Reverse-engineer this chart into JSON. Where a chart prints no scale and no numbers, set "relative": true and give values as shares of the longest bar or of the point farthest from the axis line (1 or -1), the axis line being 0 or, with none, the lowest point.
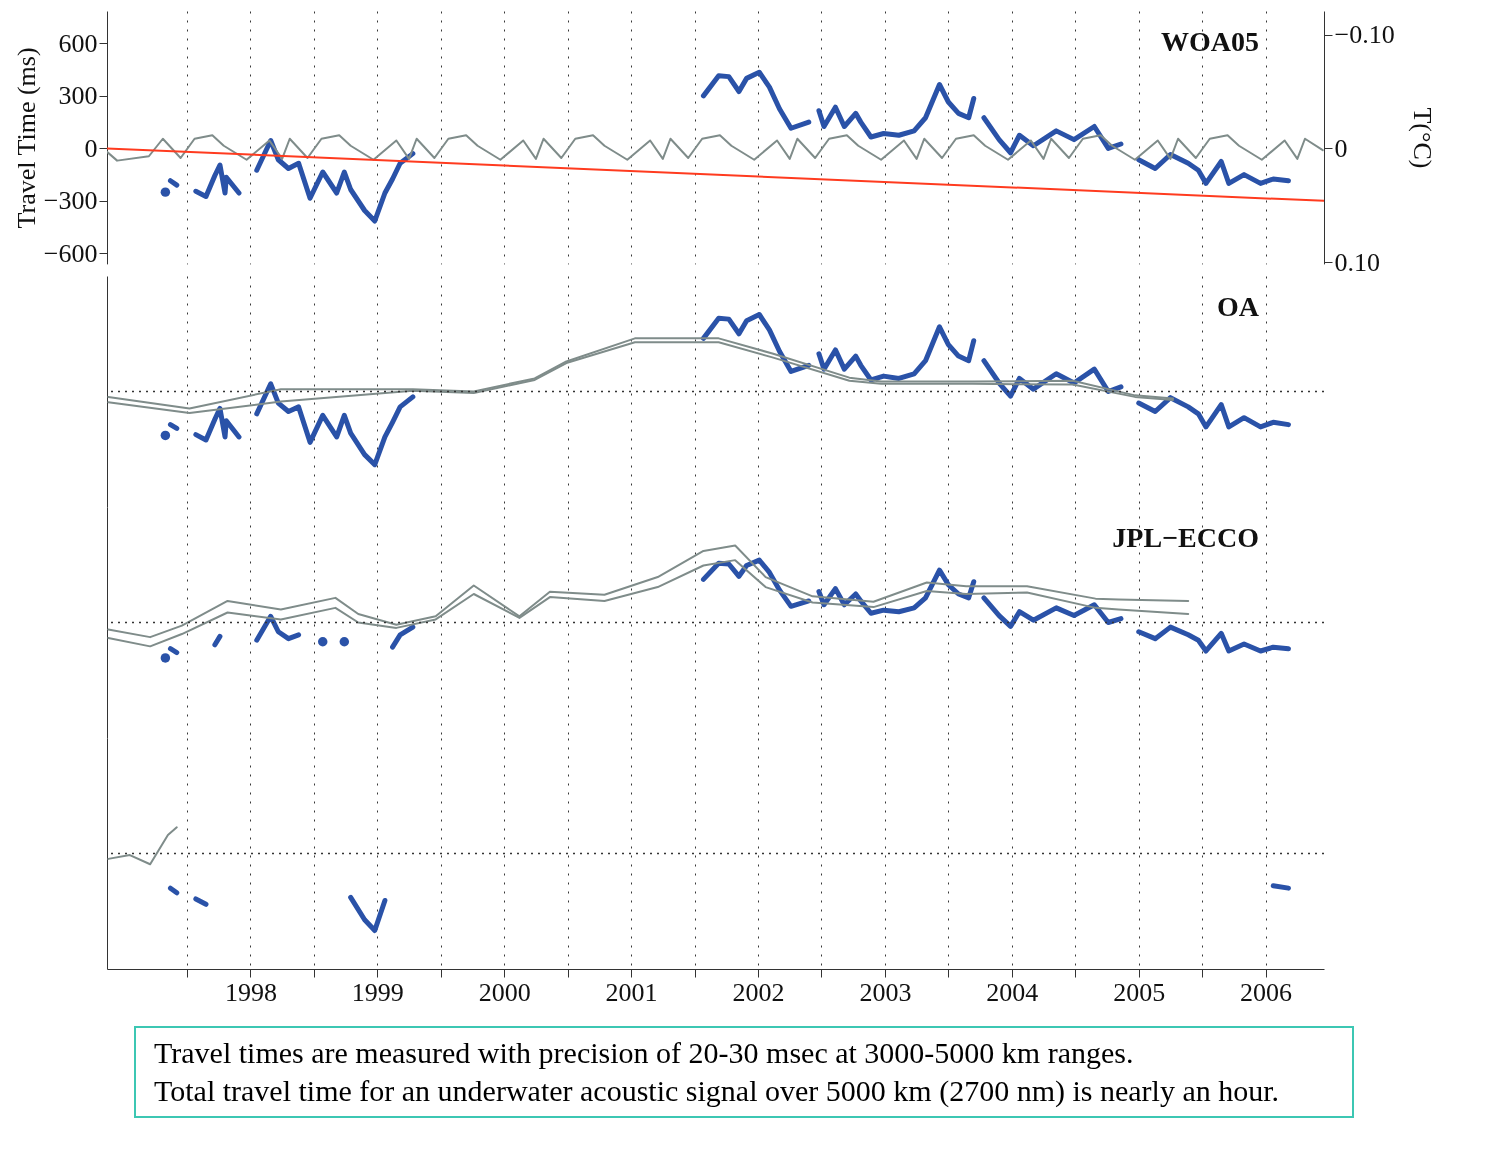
{
  "chart_data": [
    {
      "type": "line",
      "title": "WOA05",
      "ylabel": "Travel Time (ms)",
      "y2label": "T(°C)",
      "xlim": [
        1996.87,
        2006.46
      ],
      "ylim": [
        -660,
        785
      ],
      "y2lim": [
        0.1015,
        -0.1208
      ],
      "xticks": [
        {
          "value": 1997.5,
          "label": null
        },
        1998,
        {
          "value": 1998.5,
          "label": null
        },
        1999,
        {
          "value": 1999.5,
          "label": null
        },
        2000,
        {
          "value": 2000.5,
          "label": null
        },
        2001,
        {
          "value": 2001.5,
          "label": null
        },
        2002,
        {
          "value": 2002.5,
          "label": null
        },
        2003,
        {
          "value": 2003.5,
          "label": null
        },
        2004,
        {
          "value": 2004.5,
          "label": null
        },
        2005,
        {
          "value": 2005.5,
          "label": null
        },
        2006
      ],
      "yticks": [
        {
          "value": -600,
          "label": "−600"
        },
        {
          "value": -300,
          "label": "−300"
        },
        0,
        300,
        600
      ],
      "y2ticks": [
        {
          "value": -0.1,
          "label": "−0.10"
        },
        0,
        {
          "value": 0.1,
          "label": "0.10"
        }
      ],
      "grid": "x",
      "tick_labels": "y",
      "series": [
        {
          "color": "#2a52a8",
          "x": [
            1997.33,
            1997.35,
            1997.37,
            1997.42,
            1997.5,
            1997.57,
            1997.65,
            1997.72,
            1997.76,
            1997.8,
            1997.81,
            1997.91,
            1997.98,
            1998.05,
            1998.16,
            1998.22,
            1998.3,
            1998.38,
            1998.47,
            1998.57,
            1998.68,
            1998.74,
            1998.79,
            1998.9,
            1998.98,
            1999.06,
            1999.12,
            1999.18,
            1999.28,
            2000.5,
            2001.57,
            2001.69,
            2001.77,
            2001.85,
            2001.91,
            2002.01,
            2002.09,
            2002.17,
            2002.26,
            2002.4,
            2002.44,
            2002.48,
            2002.52,
            2002.61,
            2002.68,
            2002.77,
            2002.81,
            2002.89,
            2002.99,
            2003.11,
            2003.23,
            2003.32,
            2003.43,
            2003.5,
            2003.58,
            2003.66,
            2003.7,
            2003.74,
            2003.78,
            2003.9,
            2003.99,
            2004.06,
            2004.17,
            2004.35,
            2004.49,
            2004.65,
            2004.76,
            2004.86,
            2004.93,
            2005.0,
            2005.13,
            2005.25,
            2005.39,
            2005.47,
            2005.53,
            2005.65,
            2005.71,
            2005.83,
            2005.96,
            2006.06,
            2006.18
          ],
          "values": [
            -250,
            null,
            -185,
            -210,
            null,
            -245,
            -275,
            -155,
            -95,
            -255,
            -165,
            -255,
            null,
            -125,
            45,
            -65,
            -115,
            -85,
            -285,
            -135,
            -255,
            -135,
            -235,
            -355,
            -415,
            -255,
            -175,
            -85,
            -30,
            null,
            300,
            415,
            410,
            325,
            400,
            435,
            350,
            225,
            115,
            150,
            null,
            215,
            125,
            235,
            125,
            200,
            150,
            65,
            85,
            75,
            100,
            175,
            365,
            265,
            200,
            175,
            285,
            null,
            175,
            50,
            -25,
            75,
            15,
            100,
            50,
            125,
            0,
            25,
            null,
            -65,
            -115,
            -35,
            -85,
            -125,
            -200,
            -75,
            -200,
            -150,
            -200,
            -175,
            -185
          ]
        },
        {
          "color": "#7f8c8a",
          "x": [
            1996.87,
            1996.95,
            1997.2,
            1997.31,
            1997.45,
            1997.56,
            1997.7,
            1997.79,
            1997.97,
            1998.15,
            1998.25,
            1998.31,
            1998.45,
            1998.56,
            1998.7,
            1998.79,
            1998.97,
            1999.15,
            1999.25,
            1999.31,
            1999.45,
            1999.56,
            1999.7,
            1999.79,
            1999.97,
            2000.15,
            2000.25,
            2000.31,
            2000.45,
            2000.56,
            2000.7,
            2000.79,
            2000.97,
            2001.15,
            2001.25,
            2001.31,
            2001.45,
            2001.56,
            2001.7,
            2001.79,
            2001.97,
            2002.15,
            2002.25,
            2002.31,
            2002.45,
            2002.56,
            2002.7,
            2002.79,
            2002.97,
            2003.15,
            2003.25,
            2003.31,
            2003.45,
            2003.56,
            2003.7,
            2003.79,
            2003.97,
            2004.15,
            2004.25,
            2004.31,
            2004.45,
            2004.56,
            2004.7,
            2004.79,
            2004.97,
            2005.15,
            2005.25,
            2005.31,
            2005.45,
            2005.56,
            2005.7,
            2005.79,
            2005.97,
            2006.15,
            2006.25,
            2006.31,
            2006.45
          ],
          "values": [
            -20,
            -70,
            -45,
            55,
            -55,
            55,
            75,
            15,
            -65,
            45,
            -60,
            55,
            -55,
            55,
            75,
            15,
            -65,
            45,
            -60,
            55,
            -55,
            55,
            75,
            15,
            -65,
            45,
            -60,
            55,
            -55,
            55,
            75,
            15,
            -65,
            45,
            -60,
            55,
            -55,
            55,
            75,
            15,
            -65,
            45,
            -60,
            55,
            -55,
            55,
            75,
            15,
            -65,
            45,
            -60,
            55,
            -55,
            55,
            75,
            15,
            -65,
            45,
            -60,
            55,
            -55,
            55,
            75,
            15,
            -65,
            45,
            -60,
            55,
            -55,
            55,
            75,
            15,
            -65,
            45,
            -60,
            55,
            -10
          ]
        },
        {
          "color": "#ff3b1f",
          "x": [
            1996.87,
            2006.46
          ],
          "values": [
            0,
            -300
          ]
        }
      ]
    },
    {
      "type": "line",
      "title": "OA",
      "relative": true,
      "xlim": [
        1996.87,
        2006.46
      ],
      "xticks": [
        {
          "value": 1997.5,
          "label": null
        },
        1998,
        {
          "value": 1998.5,
          "label": null
        },
        1999,
        {
          "value": 1999.5,
          "label": null
        },
        2000,
        {
          "value": 2000.5,
          "label": null
        },
        2001,
        {
          "value": 2001.5,
          "label": null
        },
        2002,
        {
          "value": 2002.5,
          "label": null
        },
        2003,
        {
          "value": 2003.5,
          "label": null
        },
        2004,
        {
          "value": 2004.5,
          "label": null
        },
        2005,
        {
          "value": 2005.5,
          "label": null
        },
        2006
      ],
      "grid": "x",
      "tick_labels": false,
      "ref_lines": [
        {
          "axis": "y",
          "value": 0,
          "color": "#333333",
          "line_style": "dotted"
        }
      ],
      "series": [
        {
          "color": "#2a52a8",
          "x": [
            1997.33,
            1997.35,
            1997.37,
            1997.42,
            1997.5,
            1997.57,
            1997.65,
            1997.72,
            1997.76,
            1997.8,
            1997.81,
            1997.91,
            1997.98,
            1998.05,
            1998.16,
            1998.22,
            1998.3,
            1998.38,
            1998.47,
            1998.57,
            1998.68,
            1998.74,
            1998.79,
            1998.9,
            1998.98,
            1999.06,
            1999.12,
            1999.18,
            1999.28,
            2000.5,
            2001.57,
            2001.69,
            2001.77,
            2001.85,
            2001.91,
            2002.01,
            2002.09,
            2002.17,
            2002.26,
            2002.4,
            2002.44,
            2002.48,
            2002.52,
            2002.61,
            2002.68,
            2002.77,
            2002.81,
            2002.89,
            2002.99,
            2003.11,
            2003.23,
            2003.32,
            2003.43,
            2003.5,
            2003.58,
            2003.66,
            2003.7,
            2003.74,
            2003.78,
            2003.9,
            2003.99,
            2004.06,
            2004.17,
            2004.35,
            2004.49,
            2004.65,
            2004.76,
            2004.86,
            2004.93,
            2005.0,
            2005.13,
            2005.25,
            2005.39,
            2005.47,
            2005.53,
            2005.65,
            2005.71,
            2005.83,
            2005.96,
            2006.06,
            2006.18
          ],
          "values": [
            -0.57,
            null,
            -0.43,
            -0.48,
            null,
            -0.56,
            -0.63,
            -0.36,
            -0.22,
            -0.59,
            -0.38,
            -0.59,
            null,
            -0.29,
            0.1,
            -0.15,
            -0.26,
            -0.2,
            -0.66,
            -0.31,
            -0.59,
            -0.31,
            -0.54,
            -0.82,
            -0.95,
            -0.59,
            -0.4,
            -0.2,
            -0.07,
            null,
            0.69,
            0.95,
            0.94,
            0.75,
            0.92,
            1,
            0.8,
            0.52,
            0.26,
            0.34,
            null,
            0.49,
            0.29,
            0.54,
            0.29,
            0.46,
            0.34,
            0.15,
            0.2,
            0.17,
            0.23,
            0.4,
            0.84,
            0.61,
            0.46,
            0.4,
            0.66,
            null,
            0.4,
            0.11,
            -0.06,
            0.17,
            0.03,
            0.23,
            0.11,
            0.29,
            0,
            0.06,
            null,
            -0.15,
            -0.26,
            -0.08,
            -0.2,
            -0.29,
            -0.46,
            -0.17,
            -0.46,
            -0.34,
            -0.46,
            -0.4,
            -0.43
          ]
        },
        {
          "color": "#7f8c8a",
          "x": [
            1996.88,
            1997.52,
            1998.24,
            1999.28,
            1999.76,
            2000.24,
            2000.49,
            2001.03,
            2001.69,
            2002.12,
            2002.72,
            2002.97,
            2003.69,
            2004.48,
            2004.97,
            2005.27
          ],
          "values": [
            -0.07,
            -0.22,
            0.03,
            0.03,
            0,
            0.17,
            0.39,
            0.69,
            0.69,
            0.49,
            0.18,
            0.13,
            0.13,
            0.14,
            -0.05,
            -0.09
          ]
        },
        {
          "color": "#7f8c8a",
          "x": [
            1996.88,
            1997.52,
            1998.24,
            1999.28,
            1999.76,
            2000.24,
            2000.49,
            2001.03,
            2001.69,
            2002.12,
            2002.72,
            2002.97,
            2003.69,
            2004.48,
            2004.97,
            2005.27
          ],
          "values": [
            -0.14,
            -0.28,
            -0.13,
            0.01,
            -0.02,
            0.15,
            0.37,
            0.64,
            0.64,
            0.44,
            0.14,
            0.1,
            0.1,
            0.09,
            -0.07,
            -0.11
          ]
        }
      ]
    },
    {
      "type": "line",
      "title": "JPL−ECCO",
      "relative": true,
      "xlim": [
        1996.87,
        2006.46
      ],
      "xticks": [
        {
          "value": 1997.5,
          "label": null
        },
        1998,
        {
          "value": 1998.5,
          "label": null
        },
        1999,
        {
          "value": 1999.5,
          "label": null
        },
        2000,
        {
          "value": 2000.5,
          "label": null
        },
        2001,
        {
          "value": 2001.5,
          "label": null
        },
        2002,
        {
          "value": 2002.5,
          "label": null
        },
        2003,
        {
          "value": 2003.5,
          "label": null
        },
        2004,
        {
          "value": 2004.5,
          "label": null
        },
        2005,
        {
          "value": 2005.5,
          "label": null
        },
        2006
      ],
      "grid": "x",
      "tick_labels": false,
      "ref_lines": [
        {
          "axis": "y",
          "value": 0,
          "color": "#333333",
          "line_style": "dotted"
        }
      ],
      "series": [
        {
          "color": "#2a52a8",
          "x": [
            1997.33,
            1997.35,
            1997.37,
            1997.42,
            1997.5,
            1997.57,
            1997.65,
            1997.72,
            1997.76,
            1997.8,
            1997.81,
            1997.91,
            1997.98,
            1998.05,
            1998.16,
            1998.22,
            1998.3,
            1998.38,
            1998.47,
            1998.57,
            1998.68,
            1998.74,
            1998.79,
            1998.9,
            1998.98,
            1999.06,
            1999.12,
            1999.18,
            1999.28,
            2000.5,
            2001.57,
            2001.69,
            2001.77,
            2001.85,
            2001.91,
            2002.01,
            2002.09,
            2002.17,
            2002.26,
            2002.4,
            2002.44,
            2002.48,
            2002.52,
            2002.61,
            2002.68,
            2002.77,
            2002.81,
            2002.89,
            2002.99,
            2003.11,
            2003.23,
            2003.32,
            2003.43,
            2003.5,
            2003.58,
            2003.66,
            2003.7,
            2003.74,
            2003.78,
            2003.9,
            2003.99,
            2004.06,
            2004.17,
            2004.35,
            2004.49,
            2004.65,
            2004.76,
            2004.86,
            2004.93,
            2005.0,
            2005.13,
            2005.25,
            2005.39,
            2005.47,
            2005.53,
            2005.65,
            2005.71,
            2005.83,
            2005.96,
            2006.06,
            2006.18
          ],
          "values": [
            -0.46,
            null,
            -0.34,
            -0.39,
            null,
            null,
            null,
            -0.29,
            -0.18,
            null,
            null,
            null,
            null,
            -0.23,
            0.08,
            -0.12,
            -0.21,
            -0.16,
            null,
            -0.25,
            null,
            -0.25,
            null,
            null,
            null,
            null,
            -0.32,
            -0.16,
            -0.06,
            null,
            0.56,
            0.77,
            0.76,
            0.6,
            0.74,
            0.81,
            0.65,
            0.42,
            0.21,
            0.28,
            null,
            0.4,
            0.23,
            0.44,
            0.23,
            0.37,
            0.28,
            0.12,
            0.16,
            0.14,
            0.19,
            0.32,
            0.68,
            0.49,
            0.37,
            0.32,
            0.53,
            null,
            0.32,
            0.09,
            -0.05,
            0.14,
            0.03,
            0.19,
            0.09,
            0.23,
            0,
            0.05,
            null,
            -0.12,
            -0.21,
            -0.06,
            -0.16,
            -0.23,
            -0.37,
            -0.14,
            -0.37,
            -0.28,
            -0.37,
            -0.32,
            -0.34
          ]
        },
        {
          "color": "#7f8c8a",
          "x": [
            1996.88,
            1997.21,
            1997.46,
            1997.82,
            1998.24,
            1998.67,
            1998.85,
            1999.15,
            1999.46,
            1999.76,
            2000.12,
            2000.36,
            2000.79,
            2001.21,
            2001.57,
            2001.82,
            2002.06,
            2002.43,
            2002.91,
            2003.33,
            2003.64,
            2004.12,
            2004.66,
            2004.84,
            2005.39
          ],
          "values": [
            -0.09,
            -0.19,
            -0.04,
            0.28,
            0.17,
            0.32,
            0.11,
            -0.03,
            0.08,
            0.48,
            0.08,
            0.4,
            0.36,
            0.59,
            0.93,
            1,
            0.59,
            0.34,
            0.27,
            0.52,
            0.47,
            0.47,
            0.31,
            0.3,
            0.28
          ]
        },
        {
          "color": "#7f8c8a",
          "x": [
            1996.88,
            1997.21,
            1997.46,
            1997.82,
            1998.24,
            1998.67,
            1998.85,
            1999.15,
            1999.46,
            1999.76,
            2000.12,
            2000.36,
            2000.79,
            2001.21,
            2001.57,
            2001.82,
            2002.06,
            2002.43,
            2002.91,
            2003.33,
            2003.64,
            2004.12,
            2004.66,
            2004.84,
            2005.39
          ],
          "values": [
            -0.2,
            -0.31,
            -0.15,
            0.13,
            0.04,
            0.19,
            0,
            -0.07,
            0.04,
            0.37,
            0.06,
            0.33,
            0.28,
            0.46,
            0.74,
            0.81,
            0.46,
            0.26,
            0.2,
            0.41,
            0.37,
            0.39,
            0.19,
            0.17,
            0.11
          ]
        }
      ]
    },
    {
      "type": "line",
      "relative": true,
      "xlim": [
        1996.87,
        2006.46
      ],
      "xticks": [
        {
          "value": 1997.5,
          "label": null
        },
        1998,
        {
          "value": 1998.5,
          "label": null
        },
        1999,
        {
          "value": 1999.5,
          "label": null
        },
        2000,
        {
          "value": 2000.5,
          "label": null
        },
        2001,
        {
          "value": 2001.5,
          "label": null
        },
        2002,
        {
          "value": 2002.5,
          "label": null
        },
        2003,
        {
          "value": 2003.5,
          "label": null
        },
        2004,
        {
          "value": 2004.5,
          "label": null
        },
        2005,
        {
          "value": 2005.5,
          "label": null
        },
        2006
      ],
      "grid": "x",
      "tick_labels": "x",
      "ref_lines": [
        {
          "axis": "y",
          "value": 0,
          "color": "#333333",
          "line_style": "dotted"
        }
      ],
      "annotations": [
        "Travel times are measured with precision of 20-30 msec at 3000-5000 km ranges.",
        "Total travel time for an underwater acoustic signal over 5000 km (2700 nm) is nearly an hour."
      ],
      "series": [
        {
          "color": "#2a52a8",
          "x": [
            1997.37,
            1997.42,
            1997.5,
            1997.57,
            1997.65,
            1997.7,
            1998.79,
            1998.9,
            1998.98,
            1999.06,
            2000.0,
            2006.06,
            2006.18
          ],
          "values": [
            -0.45,
            -0.51,
            null,
            -0.59,
            -0.66,
            null,
            -0.57,
            -0.86,
            -1,
            -0.61,
            null,
            -0.42,
            -0.45
          ]
        },
        {
          "color": "#7f8c8a",
          "x": [
            1996.88,
            1997.05,
            1997.21,
            1997.35,
            1997.42
          ],
          "values": [
            -0.07,
            -0.02,
            -0.14,
            0.24,
            0.34
          ]
        }
      ]
    }
  ]
}
